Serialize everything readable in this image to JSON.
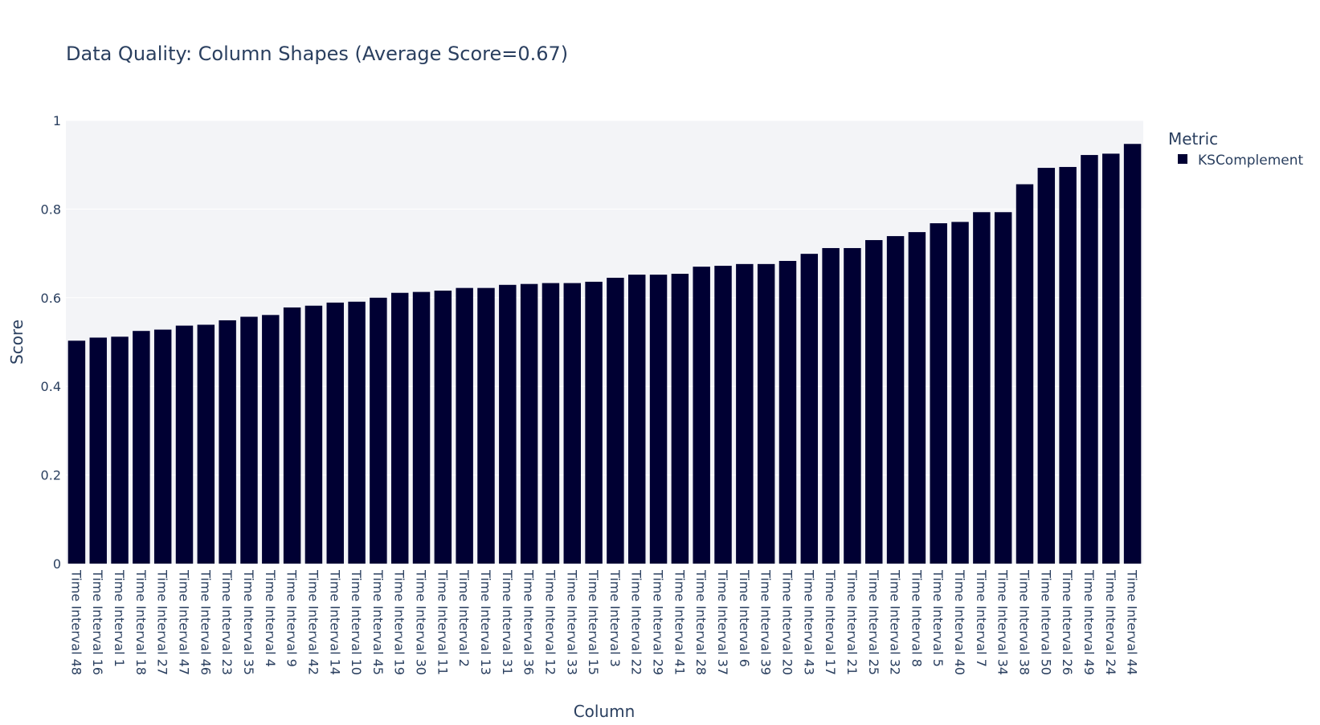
{
  "chart_data": {
    "type": "bar",
    "title": "Data Quality: Column Shapes (Average Score=0.67)",
    "xlabel": "Column",
    "ylabel": "Score",
    "ylim": [
      0,
      1
    ],
    "yticks": [
      "0",
      "0.2",
      "0.4",
      "0.6",
      "0.8",
      "1"
    ],
    "grid": true,
    "legend": {
      "title": "Metric",
      "position": "top-right"
    },
    "categories": [
      "Time Interval 48",
      "Time Interval 16",
      "Time Interval 1",
      "Time Interval 18",
      "Time Interval 27",
      "Time Interval 47",
      "Time Interval 46",
      "Time Interval 23",
      "Time Interval 35",
      "Time Interval 4",
      "Time Interval 9",
      "Time Interval 42",
      "Time Interval 14",
      "Time Interval 10",
      "Time Interval 45",
      "Time Interval 19",
      "Time Interval 30",
      "Time Interval 11",
      "Time Interval 2",
      "Time Interval 13",
      "Time Interval 31",
      "Time Interval 36",
      "Time Interval 12",
      "Time Interval 33",
      "Time Interval 15",
      "Time Interval 3",
      "Time Interval 22",
      "Time Interval 29",
      "Time Interval 41",
      "Time Interval 28",
      "Time Interval 37",
      "Time Interval 6",
      "Time Interval 39",
      "Time Interval 20",
      "Time Interval 43",
      "Time Interval 17",
      "Time Interval 21",
      "Time Interval 25",
      "Time Interval 32",
      "Time Interval 8",
      "Time Interval 5",
      "Time Interval 40",
      "Time Interval 7",
      "Time Interval 34",
      "Time Interval 38",
      "Time Interval 50",
      "Time Interval 26",
      "Time Interval 49",
      "Time Interval 24",
      "Time Interval 44"
    ],
    "series": [
      {
        "name": "KSComplement",
        "color": "#000033",
        "values": [
          0.503,
          0.51,
          0.512,
          0.525,
          0.528,
          0.537,
          0.539,
          0.549,
          0.557,
          0.561,
          0.578,
          0.582,
          0.589,
          0.591,
          0.6,
          0.611,
          0.613,
          0.616,
          0.622,
          0.622,
          0.629,
          0.631,
          0.633,
          0.633,
          0.636,
          0.645,
          0.652,
          0.652,
          0.654,
          0.67,
          0.672,
          0.676,
          0.676,
          0.683,
          0.699,
          0.712,
          0.712,
          0.73,
          0.739,
          0.748,
          0.768,
          0.771,
          0.793,
          0.793,
          0.856,
          0.893,
          0.895,
          0.922,
          0.925,
          0.947
        ]
      }
    ],
    "colors": {
      "plot_bg": "#f3f4f7",
      "grid": "#ffffff",
      "text": "#2a3f5f"
    }
  }
}
